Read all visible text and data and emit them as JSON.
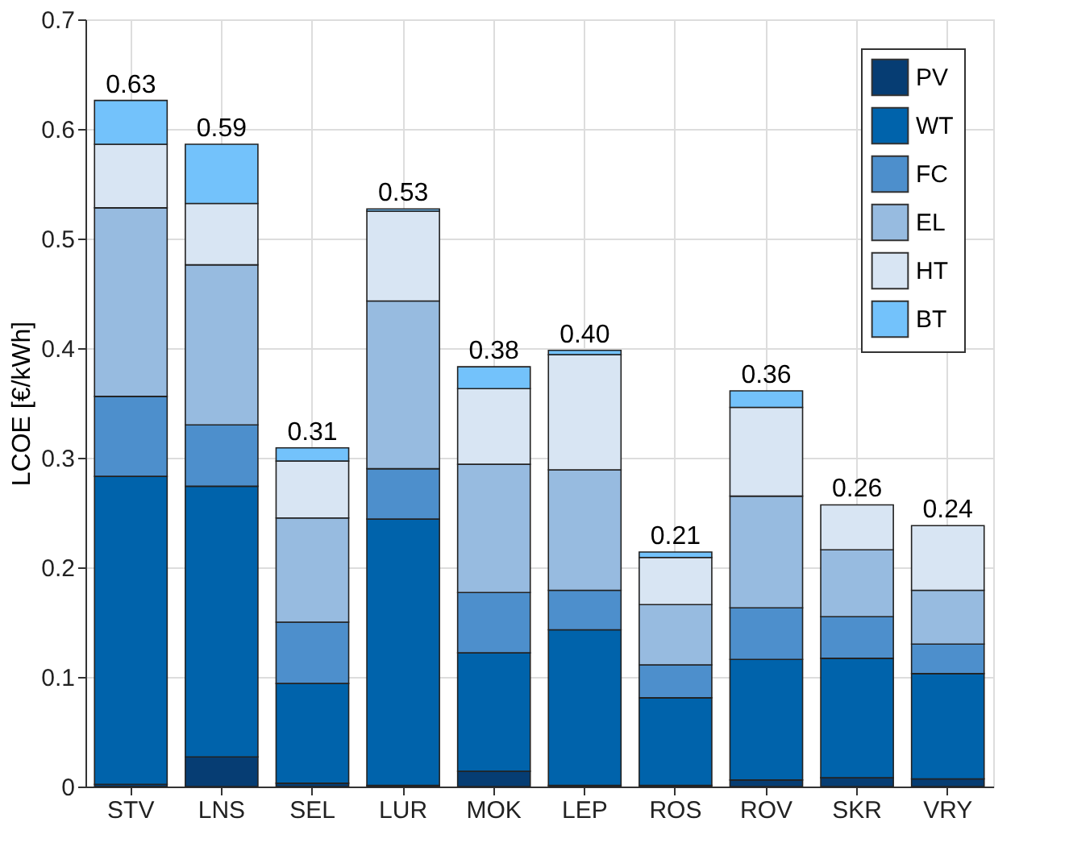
{
  "chart_data": {
    "type": "bar",
    "stacked": true,
    "ylabel": "LCOE [€/kWh]",
    "categories": [
      "STV",
      "LNS",
      "SEL",
      "LUR",
      "MOK",
      "LEP",
      "ROS",
      "ROV",
      "SKR",
      "VRY"
    ],
    "series": [
      {
        "name": "PV",
        "color": "#063d73",
        "values": [
          0.002,
          0.027,
          0.003,
          0.001,
          0.014,
          0.001,
          0.001,
          0.006,
          0.008,
          0.007
        ]
      },
      {
        "name": "WT",
        "color": "#0063ab",
        "values": [
          0.281,
          0.247,
          0.091,
          0.243,
          0.108,
          0.142,
          0.08,
          0.11,
          0.109,
          0.096
        ]
      },
      {
        "name": "FC",
        "color": "#4d8fcc",
        "values": [
          0.073,
          0.056,
          0.056,
          0.046,
          0.055,
          0.036,
          0.03,
          0.047,
          0.038,
          0.027
        ]
      },
      {
        "name": "EL",
        "color": "#97bbe0",
        "values": [
          0.172,
          0.146,
          0.095,
          0.153,
          0.117,
          0.11,
          0.055,
          0.102,
          0.061,
          0.049
        ]
      },
      {
        "name": "HT",
        "color": "#d8e5f3",
        "values": [
          0.058,
          0.056,
          0.052,
          0.082,
          0.069,
          0.105,
          0.043,
          0.081,
          0.041,
          0.059
        ]
      },
      {
        "name": "BT",
        "color": "#73c2fb",
        "values": [
          0.04,
          0.054,
          0.012,
          0.002,
          0.02,
          0.004,
          0.005,
          0.015,
          null,
          null
        ]
      }
    ],
    "totals": [
      "0.63",
      "0.59",
      "0.31",
      "0.53",
      "0.38",
      "0.40",
      "0.21",
      "0.36",
      "0.26",
      "0.24"
    ],
    "ylim": [
      0,
      0.7
    ],
    "yticks": [
      0,
      0.1,
      0.2,
      0.3,
      0.4,
      0.5,
      0.6,
      0.7
    ],
    "grid": true,
    "legend": "top right"
  }
}
